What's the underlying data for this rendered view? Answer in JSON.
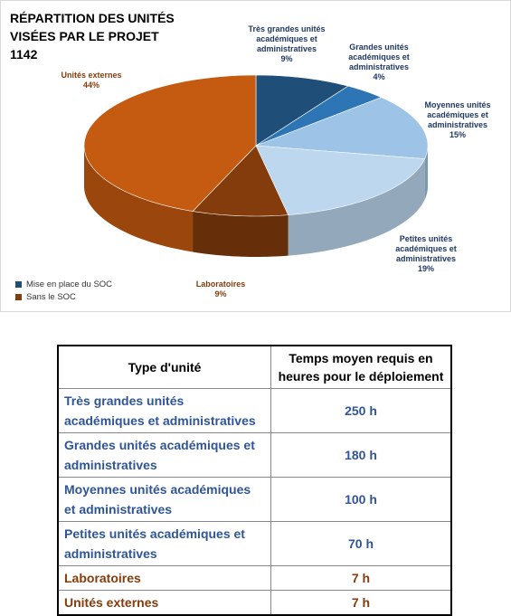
{
  "chart_data": {
    "type": "pie",
    "title": "RÉPARTITION DES UNITÉS VISÉES PAR LE PROJET 1142",
    "categories": [
      "Très grandes unités académiques et administratives",
      "Grandes unités académiques et administratives",
      "Moyennes unités académiques et administratives",
      "Petites unités académiques et administratives",
      "Laboratoires",
      "Unités externes"
    ],
    "values": [
      9,
      4,
      15,
      19,
      9,
      44
    ],
    "value_labels": [
      "9%",
      "4%",
      "15%",
      "19%",
      "9%",
      "44%"
    ],
    "colors": [
      "#1f4e79",
      "#2e75b6",
      "#9dc3e6",
      "#bdd7ee",
      "#843c0c",
      "#c55a11"
    ],
    "label_colors": [
      "#1f3864",
      "#1f3864",
      "#1f3864",
      "#1f3864",
      "#843c0c",
      "#843c0c"
    ],
    "legend": [
      {
        "name": "Mise en place du SOC",
        "color": "#1f4e79"
      },
      {
        "name": "Sans le SOC",
        "color": "#843c0c"
      }
    ]
  },
  "table": {
    "header": [
      "Type d'unité",
      "Temps moyen requis en heures pour le déploiement"
    ],
    "rows": [
      [
        "Très grandes unités académiques et administratives",
        "250 h"
      ],
      [
        "Grandes unités académiques et administratives",
        "180 h"
      ],
      [
        "Moyennes unités académiques et administratives",
        "100 h"
      ],
      [
        "Petites unités académiques et administratives",
        "70 h"
      ],
      [
        "Laboratoires",
        "7 h"
      ],
      [
        "Unités externes",
        "7 h"
      ]
    ],
    "row_colors": [
      "#2f5597",
      "#2f5597",
      "#2f5597",
      "#2f5597",
      "#843c0c",
      "#843c0c"
    ]
  }
}
